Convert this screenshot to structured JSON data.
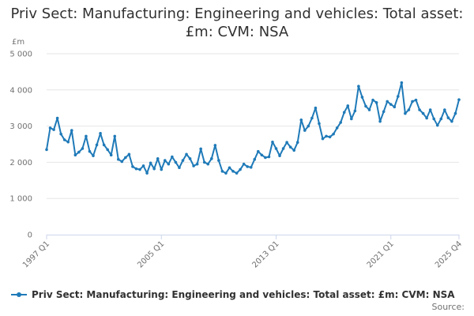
{
  "colors": {
    "series": "#1f7ab8",
    "grid": "#e6e6e6",
    "axis": "#ccd6eb",
    "text": "#707071"
  },
  "source_label": "Source:",
  "chart_data": {
    "type": "line",
    "title": "Priv Sect: Manufacturing: Engineering and vehicles: Total asset: £m: CVM: NSA",
    "ylabel": "£m",
    "xlabel": "",
    "ylim": [
      0,
      5000
    ],
    "yticks": [
      0,
      1000,
      2000,
      3000,
      4000,
      5000
    ],
    "ytick_labels": [
      "0",
      "1 000",
      "2 000",
      "3 000",
      "4 000",
      "5 000"
    ],
    "xtick_labels": [
      "1997 Q1",
      "2005 Q1",
      "2013 Q1",
      "2021 Q1",
      "2025 Q4"
    ],
    "xtick_index": [
      0,
      32,
      64,
      96,
      115
    ],
    "grid": true,
    "legend_position": "bottom-left",
    "series": [
      {
        "name": "Priv Sect: Manufacturing: Engineering and vehicles: Total asset: £m: CVM: NSA",
        "start": "1997 Q1",
        "values": [
          2350,
          2950,
          2900,
          3220,
          2780,
          2620,
          2560,
          2880,
          2200,
          2280,
          2380,
          2720,
          2300,
          2180,
          2480,
          2800,
          2480,
          2350,
          2200,
          2720,
          2080,
          2020,
          2130,
          2220,
          1880,
          1820,
          1800,
          1900,
          1700,
          1980,
          1820,
          2100,
          1800,
          2050,
          1950,
          2150,
          2000,
          1850,
          2050,
          2220,
          2100,
          1900,
          1950,
          2370,
          2000,
          1950,
          2100,
          2470,
          2050,
          1750,
          1700,
          1850,
          1750,
          1700,
          1800,
          1950,
          1880,
          1860,
          2080,
          2300,
          2200,
          2130,
          2150,
          2560,
          2380,
          2180,
          2380,
          2550,
          2420,
          2330,
          2550,
          3170,
          2880,
          3000,
          3220,
          3500,
          3070,
          2650,
          2720,
          2700,
          2780,
          2950,
          3100,
          3380,
          3560,
          3200,
          3420,
          4100,
          3800,
          3550,
          3450,
          3720,
          3650,
          3130,
          3400,
          3680,
          3600,
          3530,
          3820,
          4200,
          3350,
          3450,
          3680,
          3720,
          3450,
          3350,
          3220,
          3450,
          3200,
          3020,
          3200,
          3450,
          3230,
          3130,
          3350,
          3730
        ]
      }
    ]
  }
}
